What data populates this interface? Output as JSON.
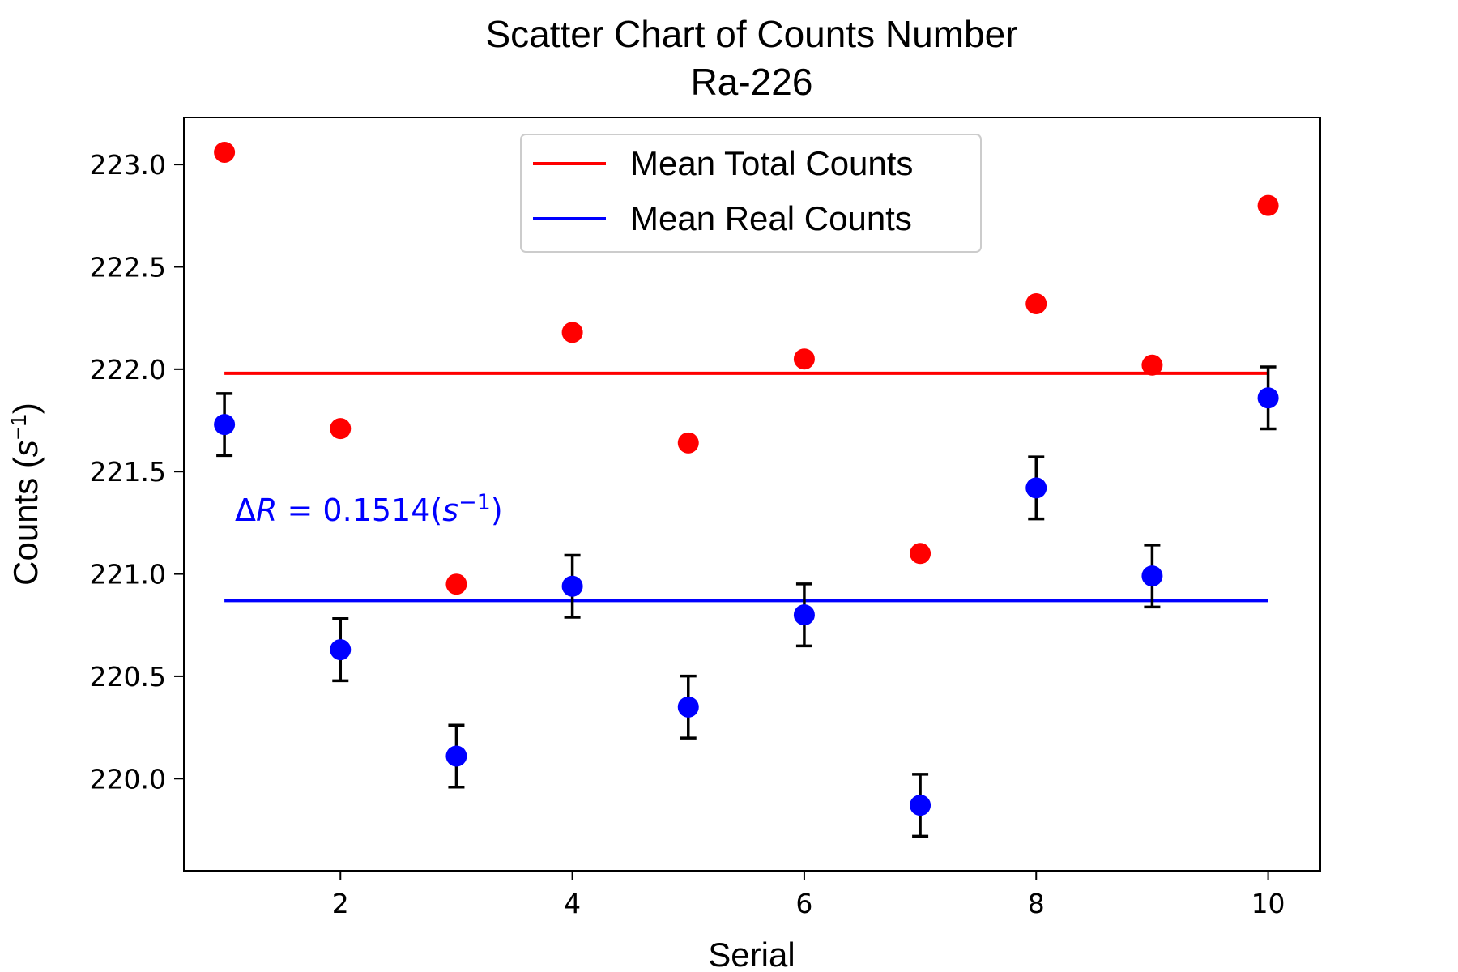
{
  "chart_data": {
    "type": "scatter",
    "title": "Scatter Chart of Counts Number",
    "subtitle": "Ra-226",
    "xlabel": "Serial",
    "ylabel_main": "Counts (",
    "ylabel_sym": "s",
    "ylabel_sup": "−1",
    "ylabel_close": ")",
    "xlim": [
      0.65,
      10.45
    ],
    "ylim": [
      219.55,
      223.23
    ],
    "x_ticks": [
      2,
      4,
      6,
      8,
      10
    ],
    "x_tick_labels": [
      "2",
      "4",
      "6",
      "8",
      "10"
    ],
    "y_ticks": [
      220.0,
      220.5,
      221.0,
      221.5,
      222.0,
      222.5,
      223.0
    ],
    "y_tick_labels": [
      "220.0",
      "220.5",
      "221.0",
      "221.5",
      "222.0",
      "222.5",
      "223.0"
    ],
    "grid": false,
    "legend_position": "upper center",
    "series": [
      {
        "name": "Total Counts",
        "color": "#ff0000",
        "x": [
          1,
          2,
          3,
          4,
          5,
          6,
          7,
          8,
          9,
          10
        ],
        "y": [
          223.06,
          221.71,
          220.95,
          222.18,
          221.64,
          222.05,
          221.1,
          222.32,
          222.02,
          222.8
        ]
      },
      {
        "name": "Real Counts",
        "color": "#0000ff",
        "x": [
          1,
          2,
          3,
          4,
          5,
          6,
          7,
          8,
          9,
          10
        ],
        "y": [
          221.73,
          220.63,
          220.11,
          220.94,
          220.35,
          220.8,
          219.87,
          221.42,
          220.99,
          221.86
        ],
        "yerr": 0.1514,
        "errorbar_color": "#000000"
      }
    ],
    "mean_lines": [
      {
        "name": "Mean Total Counts",
        "color": "#ff0000",
        "y": 221.98,
        "x_range": [
          1,
          10
        ]
      },
      {
        "name": "Mean Real Counts",
        "color": "#0000ff",
        "y": 220.87,
        "x_range": [
          1,
          10
        ]
      }
    ],
    "legend": [
      "Mean Total Counts",
      "Mean Real Counts"
    ],
    "annotation": {
      "delta": "Δ",
      "var": "R",
      "eq": " = 0.1514(",
      "sym": "s",
      "sup": "−1",
      "close": ")",
      "color": "#0000ff",
      "x": 1.0,
      "y": 221.27
    }
  }
}
